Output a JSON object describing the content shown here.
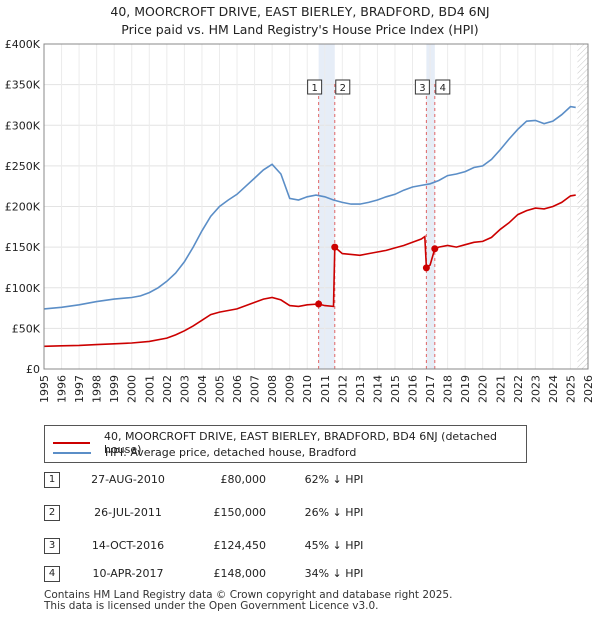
{
  "chart_data": {
    "type": "line",
    "title": "40, MOORCROFT DRIVE, EAST BIERLEY, BRADFORD, BD4 6NJ",
    "subtitle": "Price paid vs. HM Land Registry's House Price Index (HPI)",
    "xlim": [
      1995,
      2026
    ],
    "ylim": [
      0,
      400000
    ],
    "x_ticks": [
      "1995",
      "1996",
      "1997",
      "1998",
      "1999",
      "2000",
      "2001",
      "2002",
      "2003",
      "2004",
      "2005",
      "2006",
      "2007",
      "2008",
      "2009",
      "2010",
      "2011",
      "2012",
      "2013",
      "2014",
      "2015",
      "2016",
      "2017",
      "2018",
      "2019",
      "2020",
      "2021",
      "2022",
      "2023",
      "2024",
      "2025",
      "2026"
    ],
    "y_ticks": [
      {
        "value": 0,
        "label": "£0"
      },
      {
        "value": 50000,
        "label": "£50K"
      },
      {
        "value": 100000,
        "label": "£100K"
      },
      {
        "value": 150000,
        "label": "£150K"
      },
      {
        "value": 200000,
        "label": "£200K"
      },
      {
        "value": 250000,
        "label": "£250K"
      },
      {
        "value": 300000,
        "label": "£300K"
      },
      {
        "value": 350000,
        "label": "£350K"
      },
      {
        "value": 400000,
        "label": "£400K"
      }
    ],
    "series": [
      {
        "name": "40, MOORCROFT DRIVE, EAST BIERLEY, BRADFORD, BD4 6NJ (detached house)",
        "color": "#cc0000",
        "points": [
          [
            1995.0,
            28000
          ],
          [
            1996.0,
            28500
          ],
          [
            1997.0,
            29000
          ],
          [
            1998.0,
            30000
          ],
          [
            1999.0,
            31000
          ],
          [
            2000.0,
            32000
          ],
          [
            2001.0,
            34000
          ],
          [
            2002.0,
            38000
          ],
          [
            2002.5,
            42000
          ],
          [
            2003.0,
            47000
          ],
          [
            2003.5,
            53000
          ],
          [
            2004.0,
            60000
          ],
          [
            2004.5,
            67000
          ],
          [
            2005.0,
            70000
          ],
          [
            2005.5,
            72000
          ],
          [
            2006.0,
            74000
          ],
          [
            2006.5,
            78000
          ],
          [
            2007.0,
            82000
          ],
          [
            2007.5,
            86000
          ],
          [
            2008.0,
            88000
          ],
          [
            2008.5,
            85000
          ],
          [
            2009.0,
            78000
          ],
          [
            2009.5,
            77000
          ],
          [
            2010.0,
            79000
          ],
          [
            2010.65,
            80000
          ],
          [
            2011.0,
            78000
          ],
          [
            2011.5,
            77000
          ],
          [
            2011.57,
            150000
          ],
          [
            2012.0,
            142000
          ],
          [
            2012.5,
            141000
          ],
          [
            2013.0,
            140000
          ],
          [
            2013.5,
            142000
          ],
          [
            2014.0,
            144000
          ],
          [
            2014.5,
            146000
          ],
          [
            2015.0,
            149000
          ],
          [
            2015.5,
            152000
          ],
          [
            2016.0,
            156000
          ],
          [
            2016.5,
            160000
          ],
          [
            2016.7,
            163000
          ],
          [
            2016.79,
            124450
          ],
          [
            2017.0,
            128000
          ],
          [
            2017.27,
            148000
          ],
          [
            2017.5,
            150000
          ],
          [
            2018.0,
            152000
          ],
          [
            2018.5,
            150000
          ],
          [
            2019.0,
            153000
          ],
          [
            2019.5,
            156000
          ],
          [
            2020.0,
            157000
          ],
          [
            2020.5,
            162000
          ],
          [
            2021.0,
            172000
          ],
          [
            2021.5,
            180000
          ],
          [
            2022.0,
            190000
          ],
          [
            2022.5,
            195000
          ],
          [
            2023.0,
            198000
          ],
          [
            2023.5,
            197000
          ],
          [
            2024.0,
            200000
          ],
          [
            2024.5,
            205000
          ],
          [
            2025.0,
            213000
          ],
          [
            2025.3,
            214000
          ]
        ]
      },
      {
        "name": "HPI: Average price, detached house, Bradford",
        "color": "#5b8ec7",
        "points": [
          [
            1995.0,
            74000
          ],
          [
            1996.0,
            76000
          ],
          [
            1997.0,
            79000
          ],
          [
            1998.0,
            83000
          ],
          [
            1999.0,
            86000
          ],
          [
            2000.0,
            88000
          ],
          [
            2000.5,
            90000
          ],
          [
            2001.0,
            94000
          ],
          [
            2001.5,
            100000
          ],
          [
            2002.0,
            108000
          ],
          [
            2002.5,
            118000
          ],
          [
            2003.0,
            132000
          ],
          [
            2003.5,
            150000
          ],
          [
            2004.0,
            170000
          ],
          [
            2004.5,
            188000
          ],
          [
            2005.0,
            200000
          ],
          [
            2005.5,
            208000
          ],
          [
            2006.0,
            215000
          ],
          [
            2006.5,
            225000
          ],
          [
            2007.0,
            235000
          ],
          [
            2007.5,
            245000
          ],
          [
            2008.0,
            252000
          ],
          [
            2008.5,
            240000
          ],
          [
            2009.0,
            210000
          ],
          [
            2009.5,
            208000
          ],
          [
            2010.0,
            212000
          ],
          [
            2010.5,
            214000
          ],
          [
            2011.0,
            212000
          ],
          [
            2011.5,
            208000
          ],
          [
            2012.0,
            205000
          ],
          [
            2012.5,
            203000
          ],
          [
            2013.0,
            203000
          ],
          [
            2013.5,
            205000
          ],
          [
            2014.0,
            208000
          ],
          [
            2014.5,
            212000
          ],
          [
            2015.0,
            215000
          ],
          [
            2015.5,
            220000
          ],
          [
            2016.0,
            224000
          ],
          [
            2016.5,
            226000
          ],
          [
            2017.0,
            228000
          ],
          [
            2017.5,
            232000
          ],
          [
            2018.0,
            238000
          ],
          [
            2018.5,
            240000
          ],
          [
            2019.0,
            243000
          ],
          [
            2019.5,
            248000
          ],
          [
            2020.0,
            250000
          ],
          [
            2020.5,
            258000
          ],
          [
            2021.0,
            270000
          ],
          [
            2021.5,
            283000
          ],
          [
            2022.0,
            295000
          ],
          [
            2022.5,
            305000
          ],
          [
            2023.0,
            306000
          ],
          [
            2023.5,
            302000
          ],
          [
            2024.0,
            305000
          ],
          [
            2024.5,
            313000
          ],
          [
            2025.0,
            323000
          ],
          [
            2025.3,
            322000
          ]
        ]
      }
    ],
    "sales": [
      {
        "id": "1",
        "x": 2010.65,
        "price": 80000
      },
      {
        "id": "2",
        "x": 2011.57,
        "price": 150000
      },
      {
        "id": "3",
        "x": 2016.79,
        "price": 124450
      },
      {
        "id": "4",
        "x": 2017.27,
        "price": 148000
      }
    ],
    "highlight_bands": [
      [
        2010.65,
        2011.57
      ],
      [
        2016.79,
        2017.27
      ]
    ],
    "forecast_from": 2025.4
  },
  "legend": {
    "property_label": "40, MOORCROFT DRIVE, EAST BIERLEY, BRADFORD, BD4 6NJ (detached house)",
    "hpi_label": "HPI: Average price, detached house, Bradford"
  },
  "transactions": [
    {
      "num": "1",
      "date": "27-AUG-2010",
      "price": "£80,000",
      "hpi": "62% ↓ HPI"
    },
    {
      "num": "2",
      "date": "26-JUL-2011",
      "price": "£150,000",
      "hpi": "26% ↓ HPI"
    },
    {
      "num": "3",
      "date": "14-OCT-2016",
      "price": "£124,450",
      "hpi": "45% ↓ HPI"
    },
    {
      "num": "4",
      "date": "10-APR-2017",
      "price": "£148,000",
      "hpi": "34% ↓ HPI"
    }
  ],
  "footer": {
    "line1": "Contains HM Land Registry data © Crown copyright and database right 2025.",
    "line2": "This data is licensed under the Open Government Licence v3.0."
  }
}
